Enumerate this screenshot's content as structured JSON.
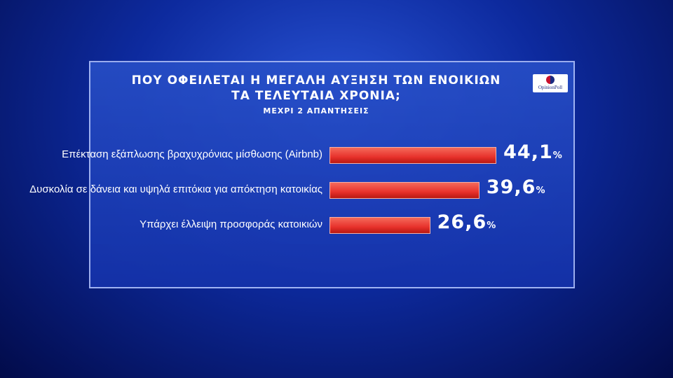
{
  "chart_data": {
    "type": "bar",
    "title": "ΠΟΥ ΟΦΕΙΛΕΤΑΙ Η ΜΕΓΑΛΗ ΑΥΞΗΣΗ ΤΩΝ ΕΝΟΙΚΙΩΝ ΤΑ ΤΕΛΕΥΤΑΙΑ ΧΡΟΝΙΑ;",
    "subtitle": "ΜΕΧΡΙ 2 ΑΠΑΝΤΗΣΕΙΣ",
    "source": "OpinionPoll",
    "categories": [
      "Επέκταση εξάπλωσης βραχυχρόνιας μίσθωσης (Airbnb)",
      "Δυσκολία σε δάνεια και υψηλά επιτόκια για απόκτηση κατοικίας",
      "Υπάρχει έλλειψη προσφοράς κατοικιών"
    ],
    "values": [
      44.1,
      39.6,
      26.6
    ],
    "value_labels": [
      "44,1%",
      "39,6%",
      "26,6%"
    ],
    "color": "#e8322c"
  }
}
